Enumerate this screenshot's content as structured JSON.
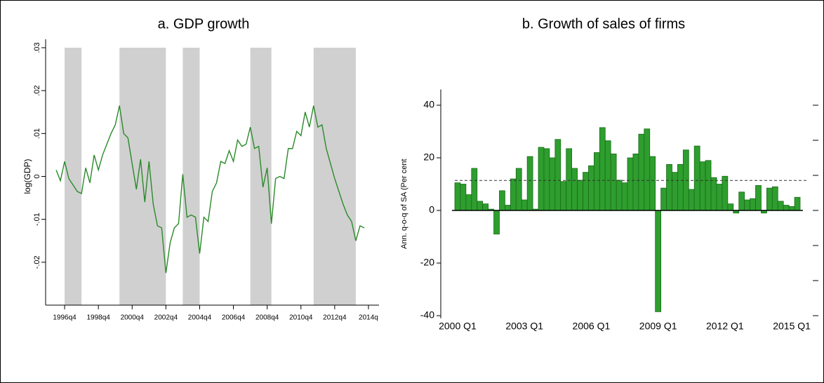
{
  "chart_data": [
    {
      "type": "line",
      "title": "a. GDP growth",
      "y_label": "log(GDP)",
      "x": [
        1996.25,
        1996.5,
        1996.75,
        1997,
        1997.25,
        1997.5,
        1997.75,
        1998,
        1998.25,
        1998.5,
        1998.75,
        1999,
        1999.25,
        1999.5,
        1999.75,
        2000,
        2000.25,
        2000.5,
        2000.75,
        2001,
        2001.25,
        2001.5,
        2001.75,
        2002,
        2002.25,
        2002.5,
        2002.75,
        2003,
        2003.25,
        2003.5,
        2003.75,
        2004,
        2004.25,
        2004.5,
        2004.75,
        2005,
        2005.25,
        2005.5,
        2005.75,
        2006,
        2006.25,
        2006.5,
        2006.75,
        2007,
        2007.25,
        2007.5,
        2007.75,
        2008,
        2008.25,
        2008.5,
        2008.75,
        2009,
        2009.25,
        2009.5,
        2009.75,
        2010,
        2010.25,
        2010.5,
        2010.75,
        2011,
        2011.25,
        2011.5,
        2011.75,
        2012,
        2012.25,
        2012.5,
        2012.75,
        2013,
        2013.25,
        2013.5,
        2013.75,
        2014,
        2014.25,
        2014.5
      ],
      "values": [
        0.0015,
        -0.001,
        0.0035,
        -0.0005,
        -0.002,
        -0.0035,
        -0.004,
        0.002,
        -0.0015,
        0.005,
        0.0015,
        0.005,
        0.0075,
        0.01,
        0.012,
        0.0165,
        0.01,
        0.009,
        0.003,
        -0.003,
        0.004,
        -0.006,
        0.0035,
        -0.0065,
        -0.0115,
        -0.012,
        -0.0225,
        -0.0155,
        -0.012,
        -0.011,
        0.0005,
        -0.0095,
        -0.009,
        -0.0095,
        -0.018,
        -0.0095,
        -0.0105,
        -0.0035,
        -0.0015,
        0.0035,
        0.003,
        0.006,
        0.0035,
        0.0085,
        0.007,
        0.0075,
        0.0115,
        0.0065,
        0.007,
        -0.0025,
        0.002,
        -0.011,
        -0.0005,
        0,
        -0.0005,
        0.0065,
        0.0065,
        0.0105,
        0.0095,
        0.015,
        0.0115,
        0.0165,
        0.0115,
        0.012,
        0.0065,
        0.003,
        -0.0005,
        -0.0035,
        -0.0065,
        -0.009,
        -0.0105,
        -0.015,
        -0.0115,
        -0.012
      ],
      "color": "#2a8a2a",
      "shaded_periods": [
        [
          1996.75,
          1997.75
        ],
        [
          2000,
          2002.75
        ],
        [
          2003.75,
          2004.75
        ],
        [
          2007.75,
          2009
        ],
        [
          2011.5,
          2014
        ]
      ],
      "shade_color": "#d0d0d0",
      "xlim": [
        1995.625,
        2015.375
      ],
      "ylim": [
        -0.03,
        0.03
      ],
      "xticks": [
        {
          "value": 1996.75,
          "label": "1996q4"
        },
        {
          "value": 1998.75,
          "label": "1998q4"
        },
        {
          "value": 2000.75,
          "label": "2000q4"
        },
        {
          "value": 2002.75,
          "label": "2002q4"
        },
        {
          "value": 2004.75,
          "label": "2004q4"
        },
        {
          "value": 2006.75,
          "label": "2006q4"
        },
        {
          "value": 2008.75,
          "label": "2008q4"
        },
        {
          "value": 2010.75,
          "label": "2010q4"
        },
        {
          "value": 2012.75,
          "label": "2012q4"
        },
        {
          "value": 2014.75,
          "label": "2014q"
        }
      ],
      "yticks": [
        {
          "value": -0.02,
          "label": "-.02"
        },
        {
          "value": -0.01,
          "label": "-.01"
        },
        0,
        {
          "value": 0.01,
          "label": ".01"
        },
        {
          "value": 0.02,
          "label": ".02"
        },
        {
          "value": 0.03,
          "label": ".03"
        }
      ]
    },
    {
      "type": "bar",
      "title": "b. Growth of sales of firms",
      "y_label": "Ann. q-o-q of SA (Per cent",
      "categories": [
        "2000 Q1",
        null,
        null,
        null,
        null,
        null,
        null,
        null,
        null,
        null,
        null,
        null,
        "2003 Q1",
        null,
        null,
        null,
        null,
        null,
        null,
        null,
        null,
        null,
        null,
        null,
        "2006 Q1",
        null,
        null,
        null,
        null,
        null,
        null,
        null,
        null,
        null,
        null,
        null,
        "2009 Q1",
        null,
        null,
        null,
        null,
        null,
        null,
        null,
        null,
        null,
        null,
        null,
        "2012 Q1",
        null,
        null,
        null,
        null,
        null,
        null,
        null,
        null,
        null,
        null,
        null,
        "2015 Q1",
        null
      ],
      "values": [
        10.5,
        10,
        6,
        16,
        3.5,
        2.5,
        0.5,
        -9,
        7.5,
        2,
        12,
        16,
        4,
        20.5,
        0.5,
        24,
        23.5,
        20,
        27,
        11,
        23.5,
        16,
        11.5,
        14.5,
        17,
        22,
        31.5,
        26.5,
        21.5,
        11.5,
        10.5,
        20,
        21.5,
        29,
        31,
        20.5,
        -38.5,
        8.5,
        17.5,
        14.5,
        17.5,
        23,
        8,
        24.5,
        18.5,
        19,
        12.5,
        10,
        13,
        2.5,
        -1,
        7,
        4,
        4.5,
        9.5,
        -1,
        8.5,
        9,
        3.5,
        2,
        1.5,
        5
      ],
      "color": "#2e9e2e",
      "edge_color": "#1a6b1a",
      "reference_line": 11.4,
      "ylim": [
        -41,
        46
      ],
      "yticks": [
        -40,
        -20,
        0,
        20,
        40
      ]
    }
  ]
}
